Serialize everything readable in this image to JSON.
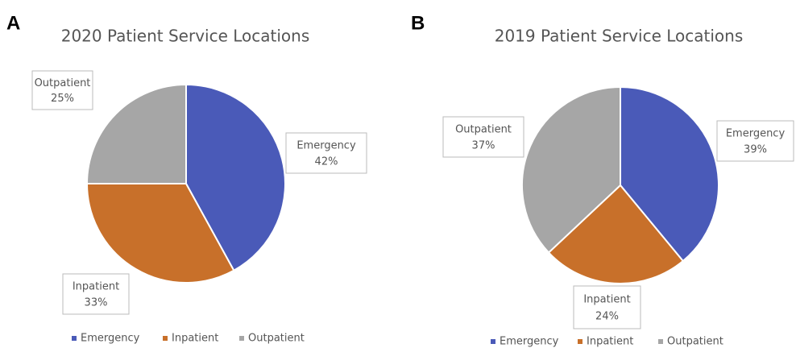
{
  "chart_data": [
    {
      "type": "pie",
      "panel_label": "A",
      "title": "2020 Patient Service Locations",
      "categories": [
        "Emergency",
        "Inpatient",
        "Outpatient"
      ],
      "values": [
        42,
        33,
        25
      ],
      "value_labels": [
        "42%",
        "33%",
        "25%"
      ],
      "colors": [
        "#4a5ab8",
        "#c8702a",
        "#a6a6a6"
      ],
      "legend": "bottom"
    },
    {
      "type": "pie",
      "panel_label": "B",
      "title": "2019 Patient Service Locations",
      "categories": [
        "Emergency",
        "Inpatient",
        "Outpatient"
      ],
      "values": [
        39,
        24,
        37
      ],
      "value_labels": [
        "39%",
        "24%",
        "37%"
      ],
      "colors": [
        "#4a5ab8",
        "#c8702a",
        "#a6a6a6"
      ],
      "legend": "bottom"
    }
  ]
}
